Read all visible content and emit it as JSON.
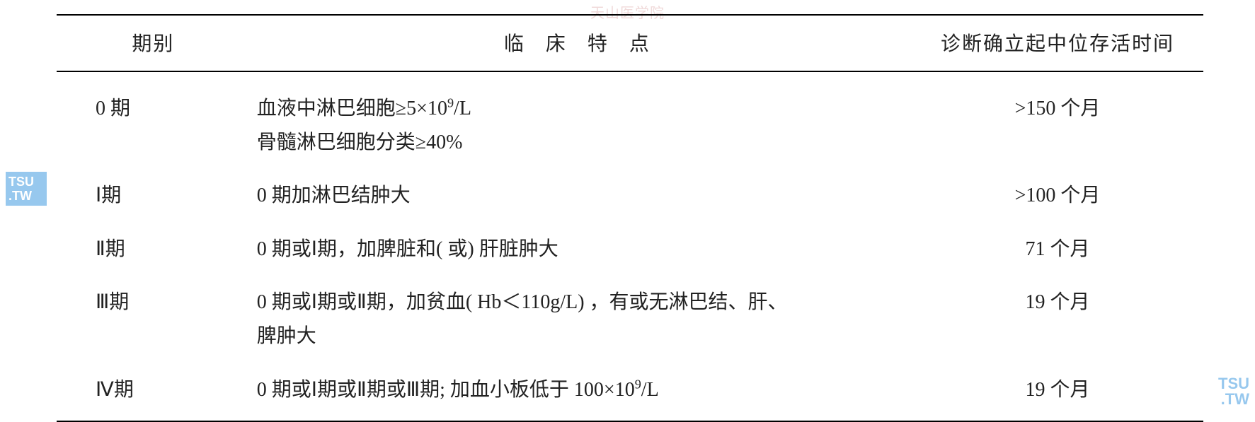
{
  "watermark_top": "天山医学院",
  "logo_left_line1": "TSU",
  "logo_left_line2": ".TW",
  "logo_right_line1": "TSU",
  "logo_right_line2": ".TW",
  "table": {
    "headers": {
      "stage": "期别",
      "feature": "临 床 特 点",
      "survival": "诊断确立起中位存活时间"
    },
    "rows": [
      {
        "stage": "0 期",
        "feature_html": "血液中淋巴细胞≥5×10<sup>9</sup>/L<br>骨髓淋巴细胞分类≥40%",
        "survival": ">150 个月"
      },
      {
        "stage": "Ⅰ期",
        "feature_html": "0 期加淋巴结肿大",
        "survival": ">100 个月"
      },
      {
        "stage": "Ⅱ期",
        "feature_html": "0 期或Ⅰ期，加脾脏和( 或) 肝脏肿大",
        "survival": "71 个月"
      },
      {
        "stage": "Ⅲ期",
        "feature_html": "0 期或Ⅰ期或Ⅱ期，加贫血( Hb＜110g/L) ，有或无淋巴结、肝、<br>脾肿大",
        "survival": "19 个月"
      },
      {
        "stage": "Ⅳ期",
        "feature_html": "0 期或Ⅰ期或Ⅱ期或Ⅲ期; 加血小板低于 100×10<sup>9</sup>/L",
        "survival": "19 个月"
      }
    ]
  }
}
